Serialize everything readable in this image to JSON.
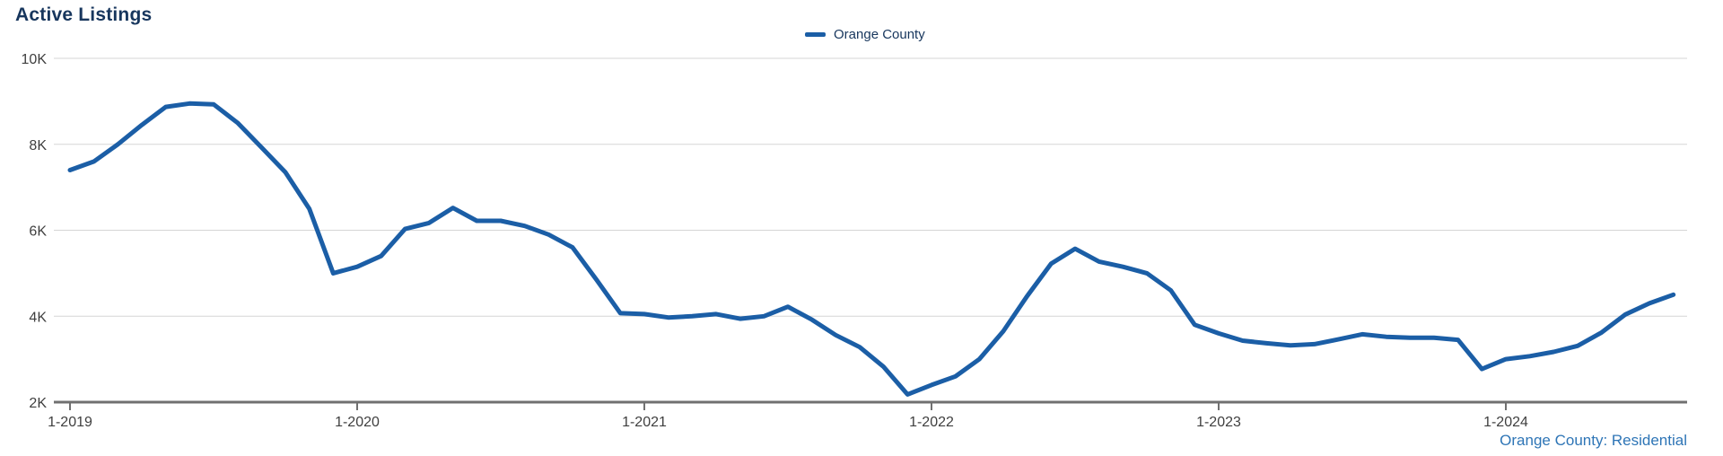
{
  "title": "Active Listings",
  "legend": {
    "items": [
      {
        "label": "Orange County",
        "marker": "line-marker",
        "color": "#1b5ea6"
      }
    ]
  },
  "footer": {
    "text": "Orange County: Residential"
  },
  "colors": {
    "line": "#1b5ea6",
    "title_text": "#17365d",
    "legend_text": "#17365d",
    "footer_text": "#2e75b6",
    "axis_label": "#3f3f3f",
    "gridline": "#d6d6d6",
    "axis_line": "#707070",
    "background": "#ffffff"
  },
  "chart_data": {
    "type": "line",
    "title": "Active Listings",
    "xlabel": "",
    "ylabel": "",
    "y_unit": "thousands of listings",
    "ylim": [
      2,
      10
    ],
    "y_ticks": [
      {
        "value": 10,
        "label": "10K"
      },
      {
        "value": 8,
        "label": "8K"
      },
      {
        "value": 6,
        "label": "6K"
      },
      {
        "value": 4,
        "label": "4K"
      },
      {
        "value": 2,
        "label": "2K"
      }
    ],
    "x_interval": "monthly",
    "x_start": "1-2019",
    "x_end": "8-2024",
    "x_ticks": [
      {
        "month_index": 0,
        "label": "1-2019"
      },
      {
        "month_index": 12,
        "label": "1-2020"
      },
      {
        "month_index": 24,
        "label": "1-2021"
      },
      {
        "month_index": 36,
        "label": "1-2022"
      },
      {
        "month_index": 48,
        "label": "1-2023"
      },
      {
        "month_index": 60,
        "label": "1-2024"
      }
    ],
    "grid": "horizontal-only",
    "legend_position": "top-center",
    "series": [
      {
        "name": "Orange County",
        "color": "#1b5ea6",
        "values_in_thousands": [
          7.4,
          7.6,
          8.0,
          8.45,
          8.87,
          8.95,
          8.93,
          8.5,
          7.93,
          7.35,
          6.5,
          5.0,
          5.15,
          5.4,
          6.03,
          6.17,
          6.52,
          6.22,
          6.22,
          6.1,
          5.9,
          5.6,
          4.85,
          4.07,
          4.05,
          3.97,
          4.0,
          4.05,
          3.94,
          4.0,
          4.22,
          3.92,
          3.56,
          3.28,
          2.82,
          2.18,
          2.4,
          2.6,
          3.0,
          3.65,
          4.47,
          5.22,
          5.57,
          5.27,
          5.15,
          5.0,
          4.6,
          3.8,
          3.6,
          3.43,
          3.37,
          3.32,
          3.35,
          3.46,
          3.58,
          3.52,
          3.5,
          3.5,
          3.45,
          2.77,
          3.0,
          3.07,
          3.17,
          3.31,
          3.62,
          4.04,
          4.3,
          4.5
        ]
      }
    ]
  }
}
